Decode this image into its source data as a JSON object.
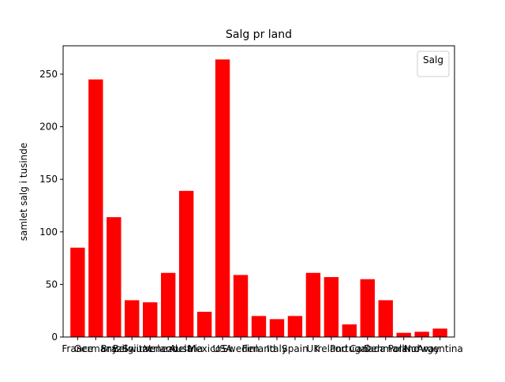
{
  "chart_data": {
    "type": "bar",
    "title": "Salg pr land",
    "ylabel": "samlet salg i tusinde",
    "legend_title": "Salg",
    "categories": [
      "France",
      "Germany",
      "Brazil",
      "Belgium",
      "Switzerland",
      "Venezuela",
      "Austria",
      "Mexico",
      "USA",
      "Sweden",
      "Finland",
      "Italy",
      "Spain",
      "UK",
      "Ireland",
      "Portugal",
      "Canada",
      "Denmark",
      "Poland",
      "Norway",
      "Argentina"
    ],
    "values": [
      85,
      245,
      114,
      35,
      33,
      61,
      139,
      24,
      264,
      59,
      20,
      17,
      20,
      61,
      57,
      12,
      55,
      35,
      4,
      5,
      8
    ],
    "color": "#ff0000",
    "ylim": [
      0,
      277
    ],
    "yticks": [
      0,
      50,
      100,
      150,
      200,
      250
    ],
    "grid": false,
    "legend": "upper right"
  }
}
